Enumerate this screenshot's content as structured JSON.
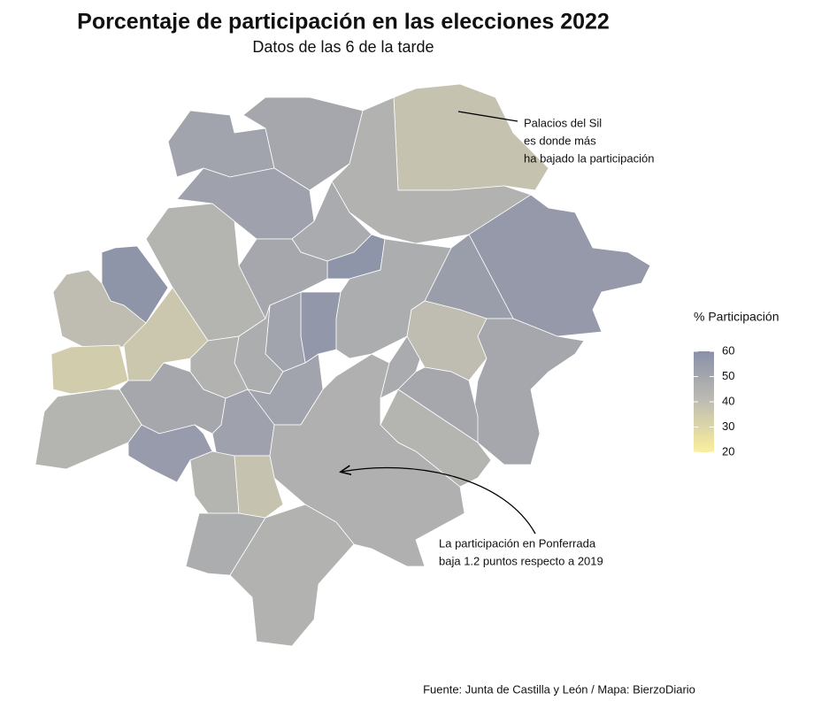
{
  "chart_data": {
    "type": "choropleth",
    "title": "Porcentaje de participación en las elecciones 2022",
    "subtitle": "Datos de las 6 de la tarde",
    "values": [
      51,
      50,
      38,
      45,
      56,
      54,
      52,
      48,
      58,
      44,
      58,
      40,
      34,
      36,
      50,
      57,
      47,
      51,
      47,
      45,
      50,
      44,
      55,
      52,
      51,
      46,
      48,
      40,
      50,
      50,
      44,
      44,
      38,
      47,
      45
    ],
    "colorbar": {
      "title": "% Participación",
      "lim": [
        20,
        60
      ],
      "ticks": [
        20,
        30,
        40,
        50,
        60
      ],
      "colors": [
        "#fbef9c",
        "#bfbdb2",
        "#8a90a8"
      ]
    },
    "annotations": [
      {
        "lines": [
          "Palacios del Sil",
          "es donde más",
          "ha bajado la participación"
        ]
      },
      {
        "lines": [
          "La participación en Ponferrada",
          "baja 1.2 puntos respecto a 2019"
        ]
      }
    ],
    "caption": "Fuente: Junta de Castilla y León / Mapa: BierzoDiario"
  }
}
